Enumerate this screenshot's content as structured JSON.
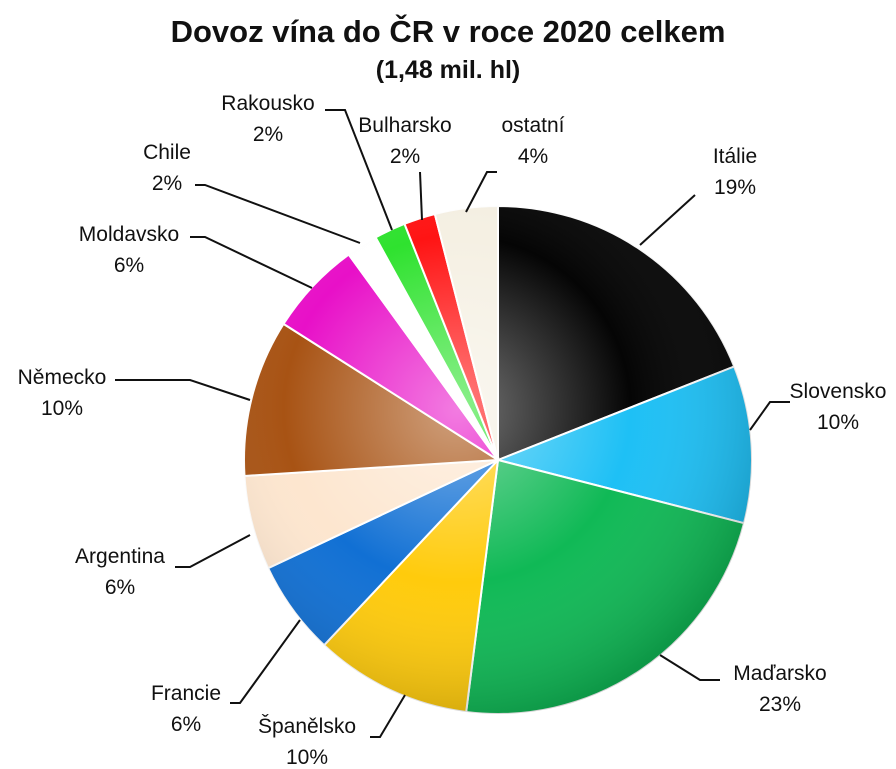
{
  "chart_data": {
    "type": "pie",
    "title": "Dovoz vína do ČR v roce 2020 celkem",
    "subtitle": "(1,48 mil. hl)",
    "value_unit": "%",
    "slices": [
      {
        "label": "Itálie",
        "value": 19,
        "value_text": "19%",
        "color": "#050505"
      },
      {
        "label": "Slovensko",
        "value": 10,
        "value_text": "10%",
        "color": "#1ec0f5"
      },
      {
        "label": "Maďarsko",
        "value": 23,
        "value_text": "23%",
        "color": "#10b956"
      },
      {
        "label": "Španělsko",
        "value": 10,
        "value_text": "10%",
        "color": "#ffcb0c"
      },
      {
        "label": "Francie",
        "value": 6,
        "value_text": "6%",
        "color": "#1170d4"
      },
      {
        "label": "Argentina",
        "value": 6,
        "value_text": "6%",
        "color": "#fde6cf"
      },
      {
        "label": "Německo",
        "value": 10,
        "value_text": "10%",
        "color": "#a85314"
      },
      {
        "label": "Moldavsko",
        "value": 6,
        "value_text": "6%",
        "color": "#e810c8"
      },
      {
        "label": "Chile",
        "value": 2,
        "value_text": "2%",
        "color": "#ffffff"
      },
      {
        "label": "Rakousko",
        "value": 2,
        "value_text": "2%",
        "color": "#2fe22f"
      },
      {
        "label": "Bulharsko",
        "value": 2,
        "value_text": "2%",
        "color": "#ff1414"
      },
      {
        "label": "ostatní",
        "value": 4,
        "value_text": "4%",
        "color": "#f5f0e3"
      }
    ]
  }
}
